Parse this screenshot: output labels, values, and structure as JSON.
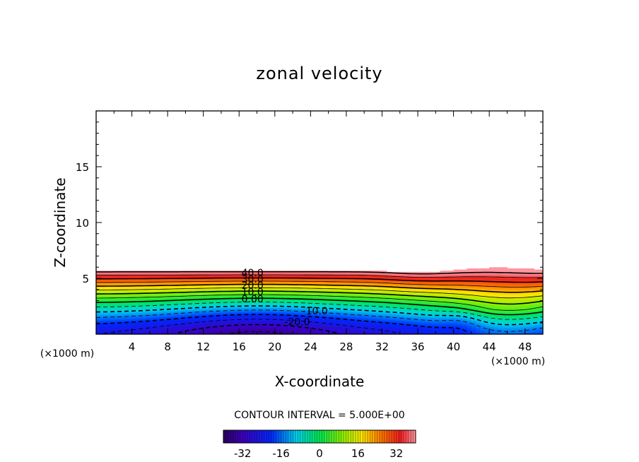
{
  "chart_data": {
    "type": "contour",
    "title": "zonal velocity",
    "xlabel": "X-coordinate",
    "ylabel": "Z-coordinate",
    "x_unit_left": "(×1000 m)",
    "x_unit_right": "(×1000 m)",
    "xlim": [
      0,
      50
    ],
    "ylim": [
      0,
      20
    ],
    "x_ticks": [
      "4",
      "8",
      "12",
      "16",
      "20",
      "24",
      "28",
      "32",
      "36",
      "40",
      "44",
      "48"
    ],
    "y_ticks": [
      "5",
      "10",
      "15"
    ],
    "contour_interval_text": "CONTOUR INTERVAL = 5.000E+00",
    "contour_labels": [
      {
        "text": "40.0",
        "x": 17.5,
        "z": 5.5
      },
      {
        "text": "30.0",
        "x": 17.5,
        "z": 4.95
      },
      {
        "text": "20.0",
        "x": 17.5,
        "z": 4.4
      },
      {
        "text": "10.0",
        "x": 17.5,
        "z": 3.8
      },
      {
        "text": "0.00",
        "x": 17.5,
        "z": 3.15
      },
      {
        "text": "-10.0",
        "x": 24.5,
        "z": 2.1
      },
      {
        "text": "-20.0",
        "x": 22.5,
        "z": 1.1
      }
    ],
    "field": {
      "top_boundary_z": 5.7,
      "min_value": -36,
      "max_value": 44,
      "description_values": {
        "surface_min_near_x": 18,
        "surface_min_value": -35,
        "top_value": 42
      }
    },
    "colorbar": {
      "range": [
        -40,
        40
      ],
      "tick_labels": [
        "-32",
        "-16",
        "0",
        "16",
        "32"
      ],
      "tick_values": [
        -32,
        -16,
        0,
        16,
        32
      ]
    }
  }
}
